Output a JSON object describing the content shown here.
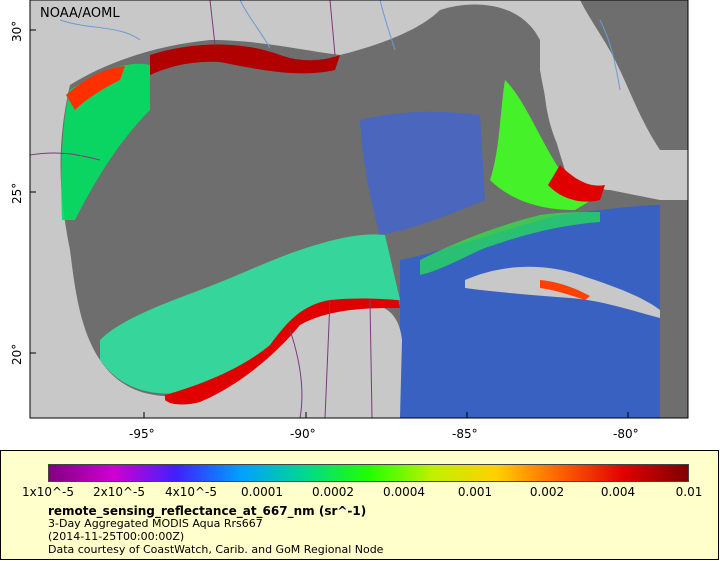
{
  "map": {
    "credit": "NOAA/AOML",
    "lat_ticks": [
      "30°",
      "25°",
      "20°"
    ],
    "lon_ticks": [
      "-95°",
      "-90°",
      "-85°",
      "-80°"
    ]
  },
  "legend": {
    "tick_labels": [
      "1x10^-5",
      "2x10^-5",
      "4x10^-5",
      "0.0001",
      "0.0002",
      "0.0004",
      "0.001",
      "0.002",
      "0.004",
      "0.01"
    ],
    "title": "remote_sensing_reflectance_at_667_nm (sr^-1)",
    "product": "3-Day Aggregated MODIS Aqua Rrs667",
    "date": "(2014-11-25T00:00:00Z)",
    "courtesy": "Data courtesy of CoastWatch, Carib. and GoM Regional Node"
  },
  "colors": {
    "land": "#c8c8c8",
    "ocean_nodata": "#6e6e6e",
    "legend_bg": "#ffffcc",
    "colormap": [
      "#800080",
      "#d000d0",
      "#4020ff",
      "#00a0ff",
      "#00d890",
      "#20ff00",
      "#c0f000",
      "#ffd000",
      "#ff6000",
      "#e00000",
      "#800000"
    ]
  }
}
